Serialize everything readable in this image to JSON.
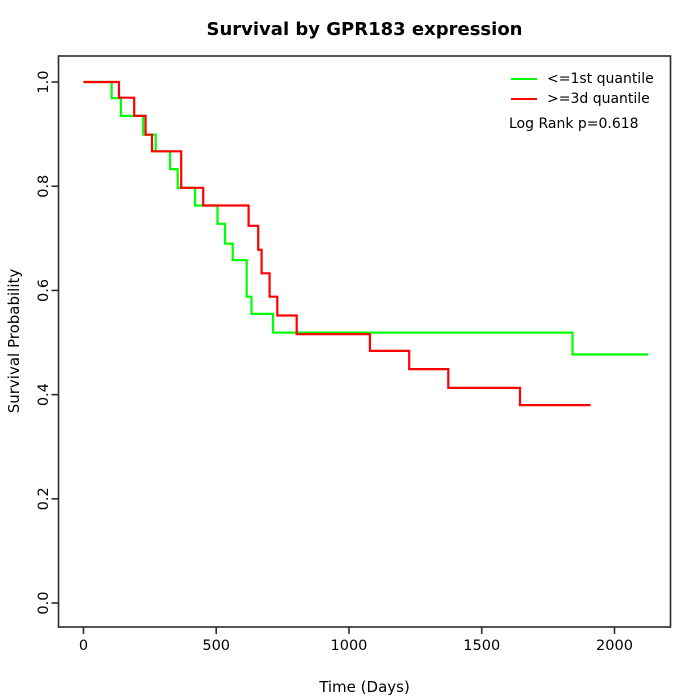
{
  "chart_data": {
    "type": "line",
    "subtype": "kaplan-meier-step",
    "title": "Survival by GPR183 expression",
    "xlabel": "Time (Days)",
    "ylabel": "Survival Probability",
    "x_ticks": [
      0,
      500,
      1000,
      1500,
      2000
    ],
    "x_tick_labels": [
      "0",
      "500",
      "1000",
      "1500",
      "2000"
    ],
    "y_ticks": [
      0.0,
      0.2,
      0.4,
      0.6,
      0.8,
      1.0
    ],
    "y_tick_labels": [
      "0.0",
      "0.2",
      "0.4",
      "0.6",
      "0.8",
      "1.0"
    ],
    "xlim": [
      -94,
      2211
    ],
    "ylim": [
      -0.046,
      1.05
    ],
    "grid": false,
    "legend_position": "top-right",
    "annotation": "Log Rank p=0.618",
    "axis_color": "#2b2b2b",
    "series": [
      {
        "name": "<=1st quantile",
        "color": "#00ff00",
        "points": [
          [
            0,
            1.0
          ],
          [
            106,
            0.969
          ],
          [
            141,
            0.935
          ],
          [
            225,
            0.899
          ],
          [
            272,
            0.867
          ],
          [
            326,
            0.833
          ],
          [
            355,
            0.797
          ],
          [
            420,
            0.763
          ],
          [
            505,
            0.728
          ],
          [
            533,
            0.69
          ],
          [
            562,
            0.658
          ],
          [
            615,
            0.588
          ],
          [
            633,
            0.555
          ],
          [
            714,
            0.519
          ],
          [
            1842,
            0.477
          ]
        ],
        "end_time": 2127
      },
      {
        "name": ">=3d quantile",
        "color": "#ff0000",
        "points": [
          [
            0,
            1.0
          ],
          [
            134,
            0.97
          ],
          [
            191,
            0.935
          ],
          [
            234,
            0.899
          ],
          [
            258,
            0.867
          ],
          [
            368,
            0.797
          ],
          [
            451,
            0.763
          ],
          [
            622,
            0.724
          ],
          [
            658,
            0.678
          ],
          [
            671,
            0.633
          ],
          [
            701,
            0.588
          ],
          [
            730,
            0.552
          ],
          [
            803,
            0.516
          ],
          [
            1079,
            0.484
          ],
          [
            1227,
            0.449
          ],
          [
            1374,
            0.413
          ],
          [
            1644,
            0.38
          ]
        ],
        "end_time": 1910
      }
    ]
  }
}
